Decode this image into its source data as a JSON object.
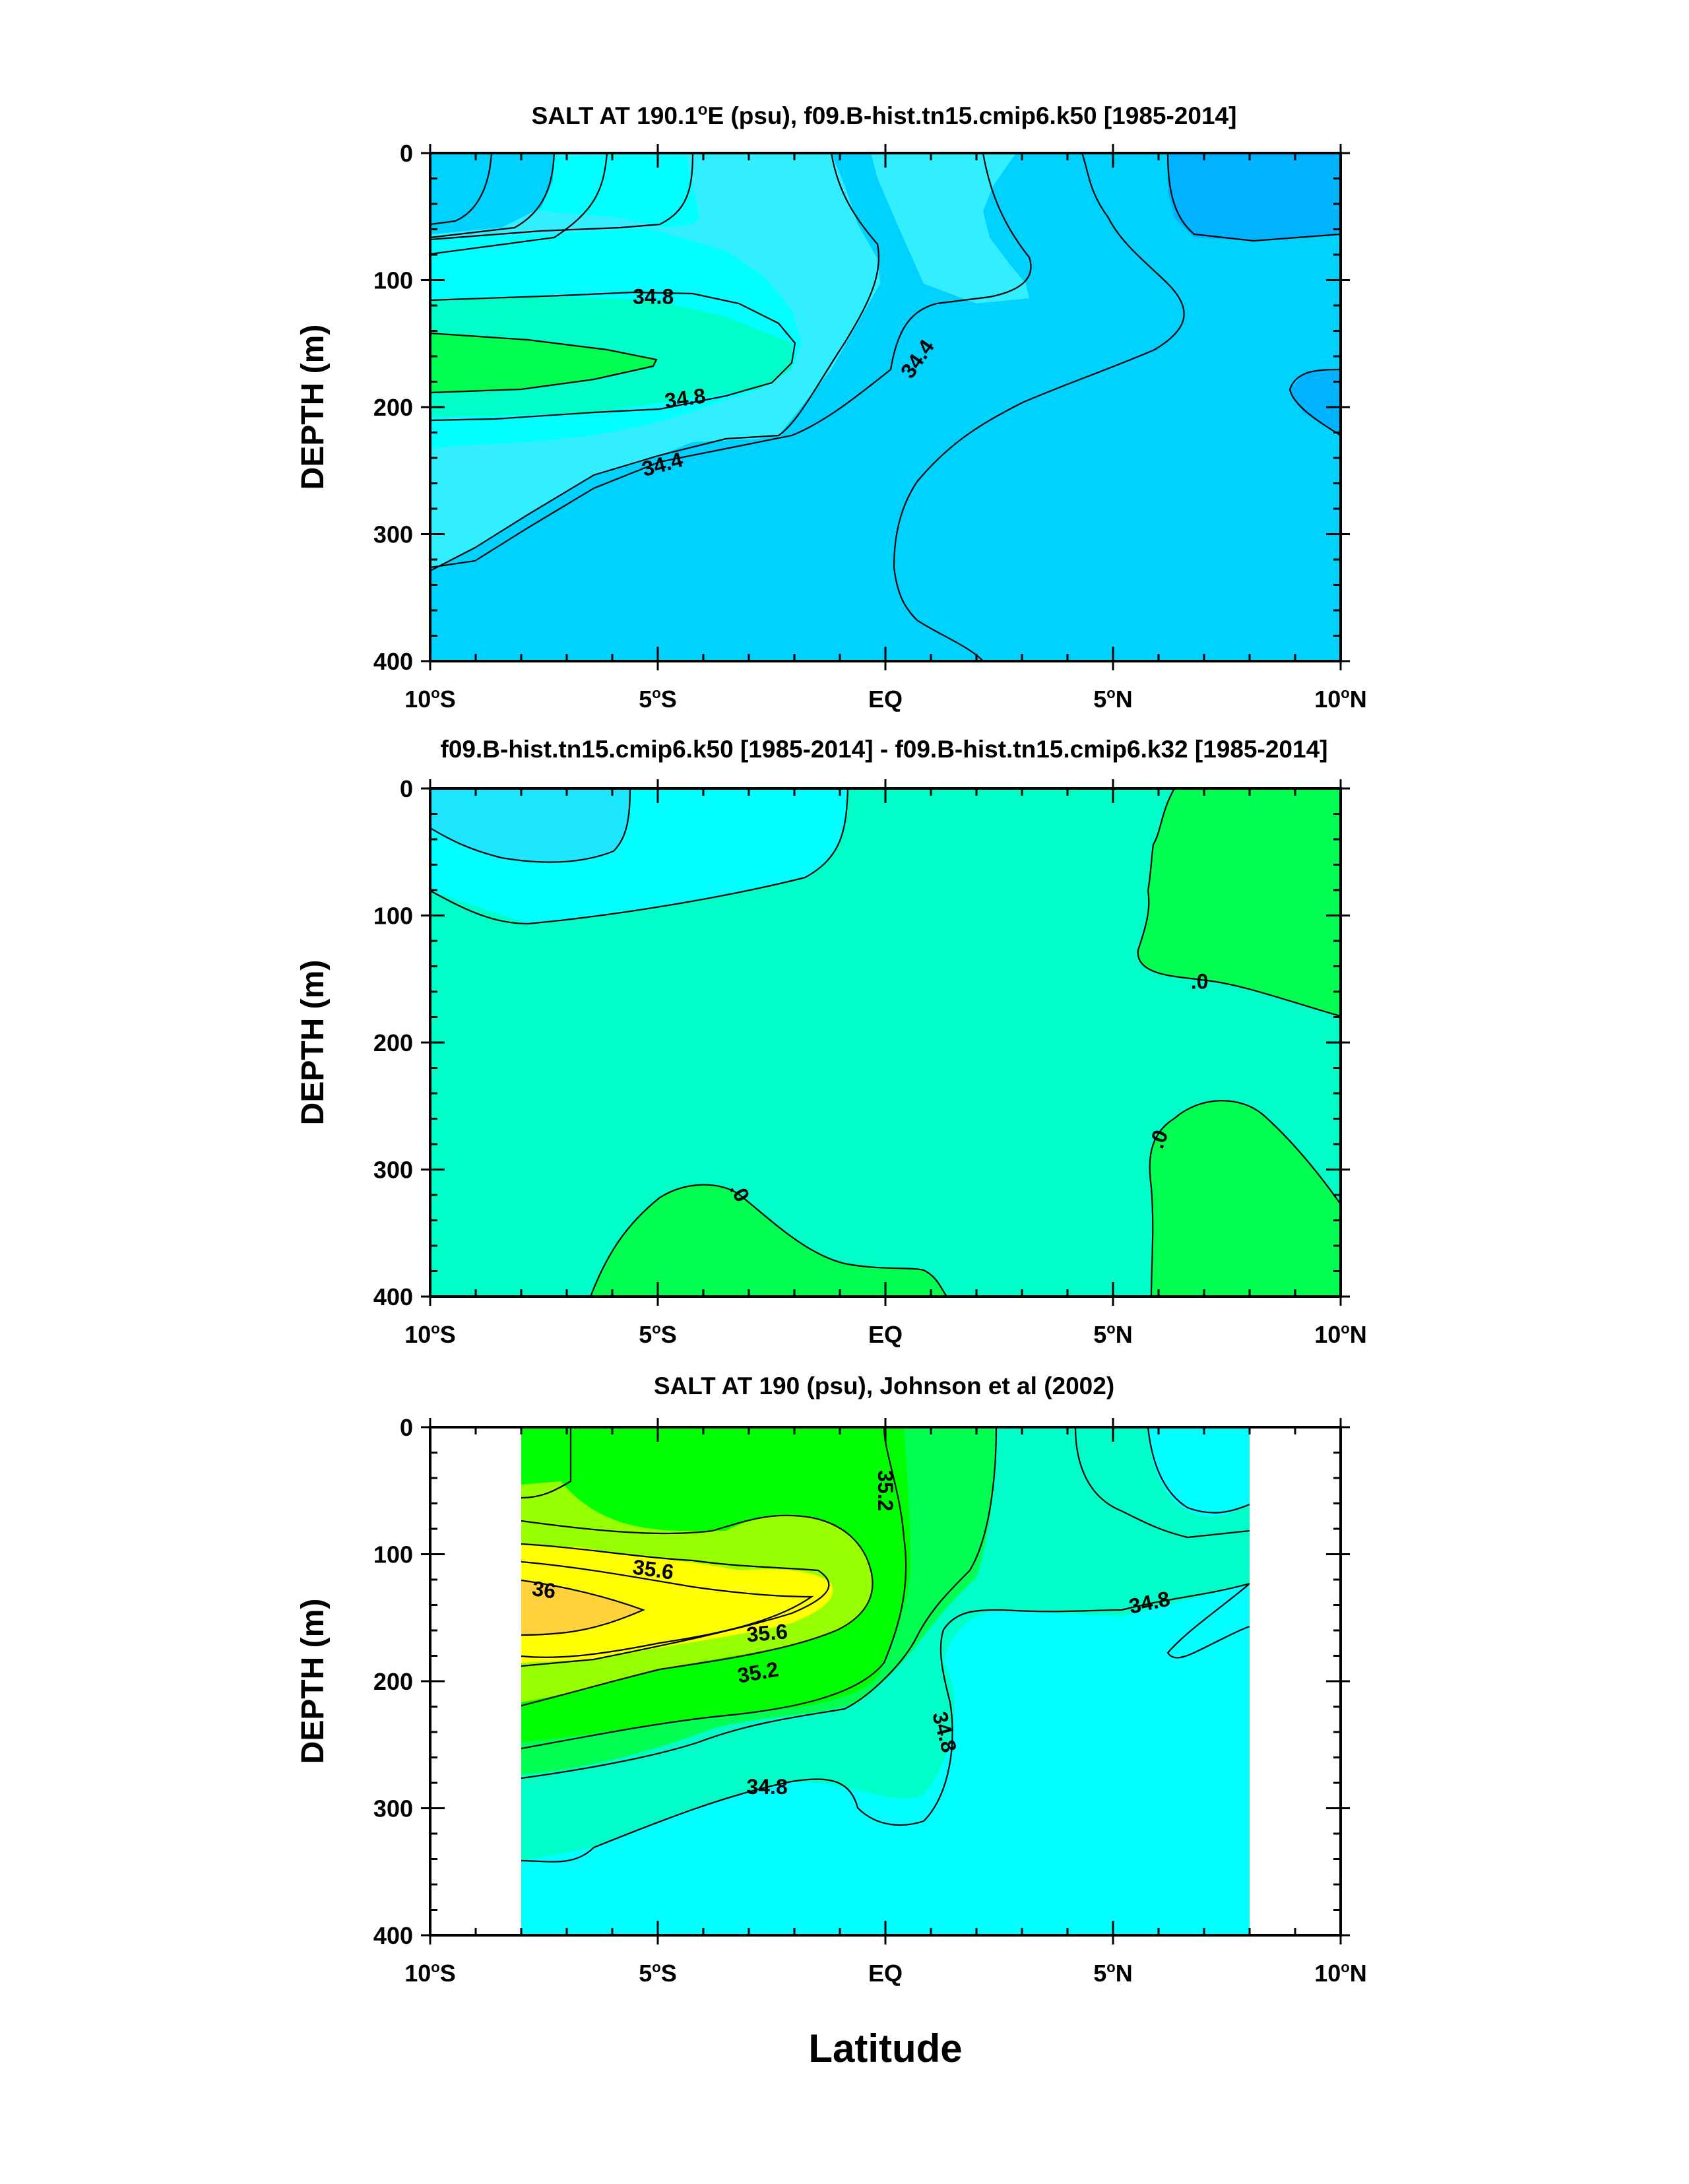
{
  "figure": {
    "xlabel": "Latitude"
  },
  "colors": {
    "c_3420": "#00b2ff",
    "c_3440": "#00d2ff",
    "c_3460": "#33eeff",
    "c_3480": "#00ffff",
    "c_3500": "#00ffc8",
    "c_3520": "#00f0a0",
    "c_3540": "#00ff50",
    "c_3560": "#00ff00",
    "c_3580": "#96ff00",
    "c_3600": "#ffff00",
    "c_3620": "#ffd23c",
    "d_neg2": "#1ee6ff",
    "d_neg1": "#00ffff",
    "d_zero": "#00ffc8",
    "d_pos": "#00ff50"
  },
  "chart_data": [
    {
      "type": "contour",
      "title": "SALT AT 190.1°E (psu), f09.B-hist.tn15.cmip6.k50 [1985-2014]",
      "title_parts": {
        "prefix": "SALT AT 190.1",
        "sup": "o",
        "suffix": "E (psu), f09.B-hist.tn15.cmip6.k50 [1985-2014]"
      },
      "ylabel": "DEPTH (m)",
      "xlim": [
        -10,
        10
      ],
      "ylim": [
        0,
        400
      ],
      "y_inverted": true,
      "x_ticks": [
        -10,
        -5,
        0,
        5,
        10
      ],
      "x_tick_labels": [
        {
          "value": -10,
          "num": "10",
          "sup": "o",
          "hemi": "S"
        },
        {
          "value": -5,
          "num": "5",
          "sup": "o",
          "hemi": "S"
        },
        {
          "value": 0,
          "num": "EQ",
          "sup": "",
          "hemi": ""
        },
        {
          "value": 5,
          "num": "5",
          "sup": "o",
          "hemi": "N"
        },
        {
          "value": 10,
          "num": "10",
          "sup": "o",
          "hemi": "N"
        }
      ],
      "y_ticks": [
        0,
        100,
        200,
        300,
        400
      ],
      "contour_labels": [
        {
          "text": "34.8",
          "lat": -5.1,
          "depth": 113,
          "angle": 0
        },
        {
          "text": "34.8",
          "lat": -4.4,
          "depth": 193,
          "angle": -8
        },
        {
          "text": "34.4",
          "lat": -4.9,
          "depth": 245,
          "angle": -15
        },
        {
          "text": "34.4",
          "lat": 0.7,
          "depth": 162,
          "angle": -55
        }
      ]
    },
    {
      "type": "contour",
      "title": "f09.B-hist.tn15.cmip6.k50 [1985-2014] - f09.B-hist.tn15.cmip6.k32 [1985-2014]",
      "ylabel": "DEPTH (m)",
      "xlim": [
        -10,
        10
      ],
      "ylim": [
        0,
        400
      ],
      "y_inverted": true,
      "x_ticks": [
        -10,
        -5,
        0,
        5,
        10
      ],
      "x_tick_labels": [
        {
          "value": -10,
          "num": "10",
          "sup": "o",
          "hemi": "S"
        },
        {
          "value": -5,
          "num": "5",
          "sup": "o",
          "hemi": "S"
        },
        {
          "value": 0,
          "num": "EQ",
          "sup": "",
          "hemi": ""
        },
        {
          "value": 5,
          "num": "5",
          "sup": "o",
          "hemi": "N"
        },
        {
          "value": 10,
          "num": "10",
          "sup": "o",
          "hemi": "N"
        }
      ],
      "y_ticks": [
        0,
        100,
        200,
        300,
        400
      ],
      "contour_labels": [
        {
          "text": ".0",
          "lat": 6.9,
          "depth": 152,
          "angle": 0
        },
        {
          "text": ".0",
          "lat": 6.0,
          "depth": 276,
          "angle": -70
        },
        {
          "text": ".0",
          "lat": -3.2,
          "depth": 318,
          "angle": 60
        }
      ]
    },
    {
      "type": "contour",
      "title": "SALT AT 190 (psu), Johnson et al (2002)",
      "ylabel": "DEPTH (m)",
      "xlim": [
        -10,
        10
      ],
      "ylim": [
        0,
        400
      ],
      "y_inverted": true,
      "data_lat_range": [
        -8,
        8
      ],
      "x_ticks": [
        -10,
        -5,
        0,
        5,
        10
      ],
      "x_tick_labels": [
        {
          "value": -10,
          "num": "10",
          "sup": "o",
          "hemi": "S"
        },
        {
          "value": -5,
          "num": "5",
          "sup": "o",
          "hemi": "S"
        },
        {
          "value": 0,
          "num": "EQ",
          "sup": "",
          "hemi": ""
        },
        {
          "value": 5,
          "num": "5",
          "sup": "o",
          "hemi": "N"
        },
        {
          "value": 10,
          "num": "10",
          "sup": "o",
          "hemi": "N"
        }
      ],
      "y_ticks": [
        0,
        100,
        200,
        300,
        400
      ],
      "contour_labels": [
        {
          "text": "35.2",
          "lat": 0.0,
          "depth": 50,
          "angle": 90
        },
        {
          "text": "35.6",
          "lat": -5.1,
          "depth": 112,
          "angle": 8
        },
        {
          "text": "36",
          "lat": -7.5,
          "depth": 128,
          "angle": 8
        },
        {
          "text": "35.6",
          "lat": -2.6,
          "depth": 162,
          "angle": -5
        },
        {
          "text": "35.2",
          "lat": -2.8,
          "depth": 193,
          "angle": -10
        },
        {
          "text": "34.8",
          "lat": 1.3,
          "depth": 240,
          "angle": 75
        },
        {
          "text": "34.8",
          "lat": 5.8,
          "depth": 138,
          "angle": -12
        },
        {
          "text": "34.8",
          "lat": -2.6,
          "depth": 283,
          "angle": 0
        }
      ]
    }
  ]
}
